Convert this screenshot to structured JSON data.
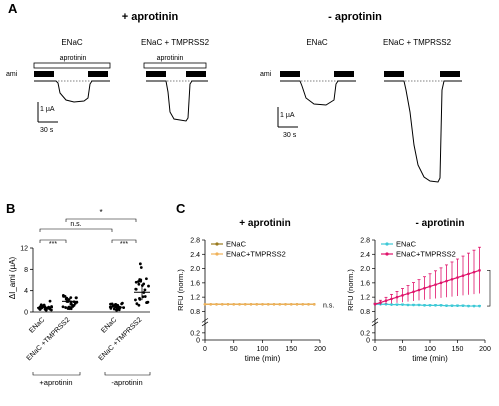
{
  "panel_a": {
    "letter": "A",
    "left_group": "+ aprotinin",
    "right_group": "- aprotinin",
    "traces": [
      "ENaC",
      "ENaC + TMPRSS2",
      "ENaC",
      "ENaC + TMPRSS2"
    ],
    "aprotinin_bar": "aprotinin",
    "ami_label": "ami",
    "scale_current": "1 µA",
    "scale_time": "30 s"
  },
  "panel_b": {
    "letter": "B",
    "ylabel": "ΔI_ami (µA)",
    "yticks": [
      "0",
      "4",
      "8",
      "12"
    ],
    "groups": [
      "ENaC",
      "ENaC +TMPRSS2",
      "ENaC",
      "ENaC +TMPRSS2"
    ],
    "sig_inner": "***",
    "sig_ns": "n.s.",
    "sig_outer": "*",
    "condition_left": "+aprotinin",
    "condition_right": "-aprotinin"
  },
  "panel_c": {
    "letter": "C",
    "title_left": "+ aprotinin",
    "title_right": "- aprotinin",
    "ylabel": "RFU (norm.)",
    "xlabel": "time (min)",
    "legend": [
      "ENaC",
      "ENaC+TMPRSS2"
    ],
    "ns_label": "n.s.",
    "sig_label": "***",
    "colors": {
      "enac_left": "#9a7a1e",
      "tmprss2_left": "#f0b25a",
      "enac_right": "#3ec9d6",
      "tmprss2_right": "#e0136b"
    }
  },
  "chart_data": [
    {
      "type": "scatter",
      "panel": "B",
      "categories": [
        "ENaC (+aprotinin)",
        "ENaC +TMPRSS2 (+aprotinin)",
        "ENaC (-aprotinin)",
        "ENaC +TMPRSS2 (-aprotinin)"
      ],
      "means": [
        0.8,
        2.0,
        0.9,
        3.7
      ],
      "ylim": [
        0,
        12
      ]
    },
    {
      "type": "line",
      "panel": "C-left",
      "x": [
        0,
        10,
        20,
        30,
        40,
        50,
        60,
        70,
        80,
        90,
        100,
        110,
        120,
        130,
        140,
        150,
        160,
        170,
        180,
        190
      ],
      "series": [
        {
          "name": "ENaC",
          "values": [
            1,
            1,
            1,
            1,
            1,
            1,
            1,
            1,
            1,
            1,
            1,
            1,
            1,
            1,
            1,
            1,
            1,
            1,
            1,
            1
          ]
        },
        {
          "name": "ENaC+TMPRSS2",
          "values": [
            1,
            1,
            1,
            1,
            1,
            1,
            1,
            1,
            1,
            1,
            1,
            1,
            1,
            1,
            1,
            1,
            1,
            1,
            1,
            1
          ]
        }
      ],
      "xlim": [
        0,
        200
      ],
      "ylim": [
        0,
        2.8
      ]
    },
    {
      "type": "line",
      "panel": "C-right",
      "x": [
        0,
        10,
        20,
        30,
        40,
        50,
        60,
        70,
        80,
        90,
        100,
        110,
        120,
        130,
        140,
        150,
        160,
        170,
        180,
        190
      ],
      "series": [
        {
          "name": "ENaC",
          "values": [
            1,
            1,
            1,
            0.99,
            0.99,
            0.99,
            0.98,
            0.98,
            0.98,
            0.97,
            0.97,
            0.97,
            0.97,
            0.96,
            0.96,
            0.96,
            0.96,
            0.95,
            0.95,
            0.95
          ],
          "err": 0.02
        },
        {
          "name": "ENaC+TMPRSS2",
          "values": [
            1,
            1.05,
            1.1,
            1.15,
            1.2,
            1.25,
            1.3,
            1.35,
            1.4,
            1.45,
            1.5,
            1.55,
            1.6,
            1.65,
            1.7,
            1.75,
            1.8,
            1.85,
            1.9,
            1.95
          ],
          "err_frac": 0.65
        }
      ],
      "xlim": [
        0,
        200
      ],
      "ylim": [
        0,
        2.8
      ]
    }
  ]
}
